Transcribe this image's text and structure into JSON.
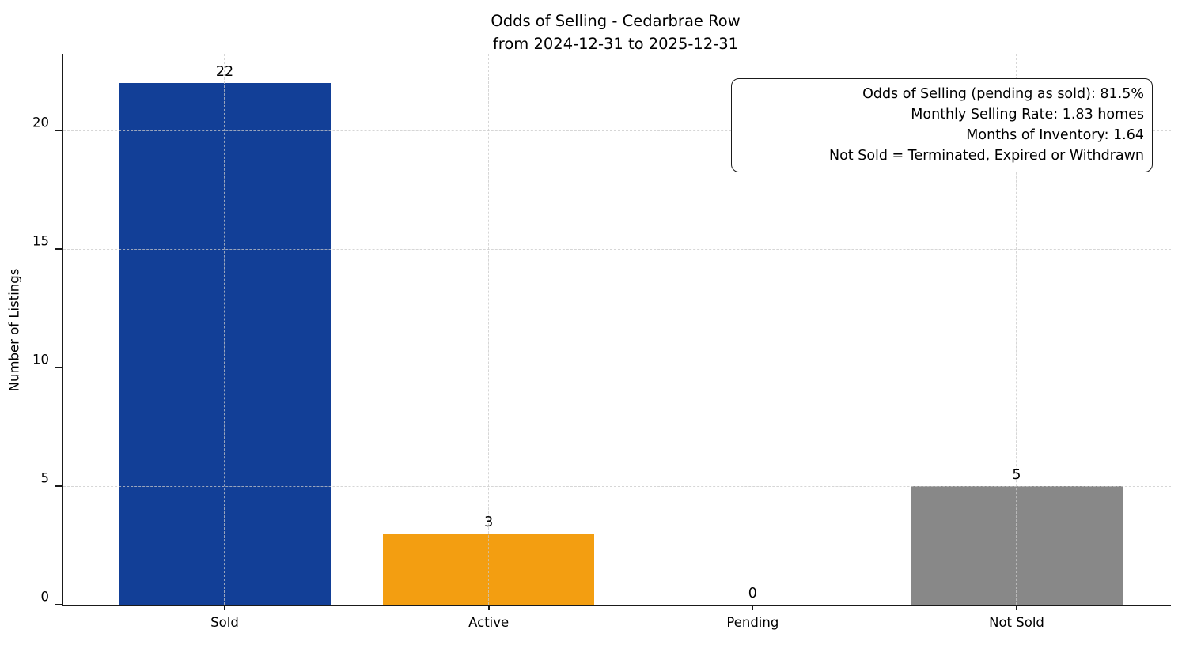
{
  "chart_data": {
    "type": "bar",
    "title": "Odds of Selling - Cedarbrae Row",
    "subtitle": "from 2024-12-31 to 2025-12-31",
    "categories": [
      "Sold",
      "Active",
      "Pending",
      "Not Sold"
    ],
    "values": [
      22,
      3,
      0,
      5
    ],
    "bar_colors": [
      "#123f97",
      "#f39e11",
      "#c23b2b"
    ],
    "xlabel": "",
    "ylabel": "Number of Listings",
    "yticks": [
      0,
      5,
      10,
      15,
      20
    ],
    "ylim": [
      0,
      23.23
    ],
    "grid": "dashed-both-axes",
    "legend": "none",
    "annotation_lines": [
      "Odds of Selling (pending as sold): 81.5%",
      "Monthly Selling Rate: 1.83 homes",
      "Months of Inventory: 1.64",
      "Not Sold = Terminated, Expired or Withdrawn"
    ]
  }
}
